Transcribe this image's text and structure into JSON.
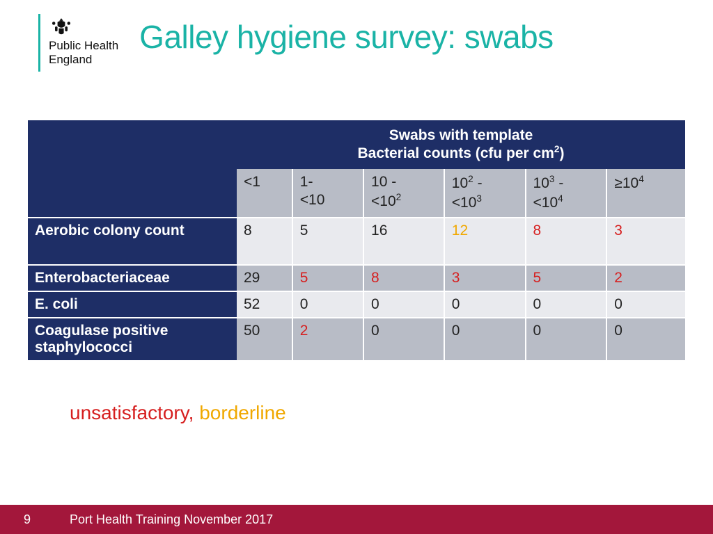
{
  "logo": {
    "line1": "Public Health",
    "line2": "England"
  },
  "title": "Galley hygiene survey: swabs",
  "colors": {
    "accent": "#1ab3a6",
    "header_bg": "#1e2e66",
    "band_light": "#e9eaee",
    "band_dark": "#b8bcc6",
    "unsatisfactory": "#d61f1f",
    "borderline": "#f0a800",
    "footer_bg": "#a3173b"
  },
  "table": {
    "header_main_line1": "Swabs with template",
    "header_main_line2_prefix": "Bacterial counts (cfu per cm",
    "header_main_line2_sup": "2",
    "header_main_line2_suffix": ")",
    "subheaders": [
      {
        "plain": "<1"
      },
      {
        "plain": "1-",
        "plain2": "<10"
      },
      {
        "plain": "10 -",
        "plain2_pre": "<10",
        "plain2_sup": "2"
      },
      {
        "pre": "10",
        "sup": "2",
        "post": " -",
        "plain2_pre": "<10",
        "plain2_sup": "3"
      },
      {
        "pre": "10",
        "sup": "3",
        "post": " -",
        "plain2_pre": "<10",
        "plain2_sup": "4"
      },
      {
        "pre": "≥10",
        "sup": "4"
      }
    ],
    "rows": [
      {
        "label": "Aerobic colony count",
        "band": "light",
        "tall": true,
        "cells": [
          {
            "v": "8",
            "c": "normal"
          },
          {
            "v": "5",
            "c": "normal"
          },
          {
            "v": "16",
            "c": "normal"
          },
          {
            "v": "12",
            "c": "border"
          },
          {
            "v": "8",
            "c": "unsat"
          },
          {
            "v": "3",
            "c": "unsat"
          }
        ]
      },
      {
        "label": "Enterobacteriaceae",
        "band": "dark",
        "cells": [
          {
            "v": "29",
            "c": "normal"
          },
          {
            "v": "5",
            "c": "unsat"
          },
          {
            "v": "8",
            "c": "unsat"
          },
          {
            "v": "3",
            "c": "unsat"
          },
          {
            "v": "5",
            "c": "unsat"
          },
          {
            "v": "2",
            "c": "unsat"
          }
        ]
      },
      {
        "label": "E. coli",
        "band": "light",
        "cells": [
          {
            "v": "52",
            "c": "normal"
          },
          {
            "v": "0",
            "c": "normal"
          },
          {
            "v": "0",
            "c": "normal"
          },
          {
            "v": "0",
            "c": "normal"
          },
          {
            "v": "0",
            "c": "normal"
          },
          {
            "v": "0",
            "c": "normal"
          }
        ]
      },
      {
        "label": "Coagulase positive staphylococci",
        "band": "dark",
        "cells": [
          {
            "v": "50",
            "c": "normal"
          },
          {
            "v": "2",
            "c": "unsat"
          },
          {
            "v": "0",
            "c": "normal"
          },
          {
            "v": "0",
            "c": "normal"
          },
          {
            "v": "0",
            "c": "normal"
          },
          {
            "v": "0",
            "c": "normal"
          }
        ]
      }
    ]
  },
  "legend": {
    "unsatisfactory": "unsatisfactory",
    "separator": ", ",
    "borderline": "borderline"
  },
  "footer": {
    "page": "9",
    "text": "Port Health Training November 2017"
  }
}
